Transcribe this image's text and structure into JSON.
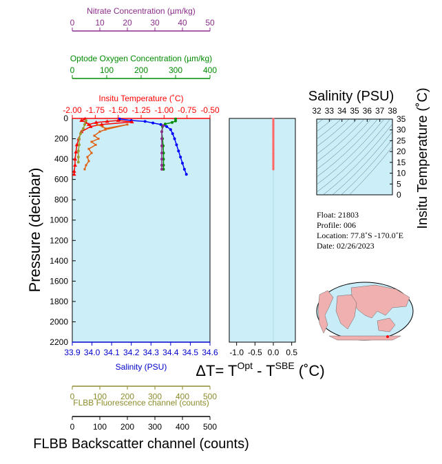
{
  "chart_data": {
    "type": "scatter",
    "y_axis": {
      "label": "Pressure (decibar)",
      "range": [
        0,
        2200
      ],
      "ticks": [
        0,
        200,
        400,
        600,
        800,
        1000,
        1200,
        1400,
        1600,
        1800,
        2000,
        2200
      ]
    },
    "top_axes": [
      {
        "label": "Nitrate Concentration (µm/kg)",
        "ticks": [
          0,
          10,
          20,
          30,
          40,
          50
        ],
        "range": [
          0,
          50
        ],
        "color": "#8b2c8b"
      },
      {
        "label": "Optode Oxygen Concentration (µm/kg)",
        "ticks": [
          0,
          100,
          200,
          300,
          400
        ],
        "range": [
          0,
          400
        ],
        "color": "#008b00"
      },
      {
        "label": "Insitu Temperature (˚C)",
        "ticks": [
          "-2.00",
          "-1.75",
          "-1.50",
          "-1.25",
          "-1.00",
          "-0.75",
          "-0.50"
        ],
        "range": [
          -2.0,
          -0.5
        ],
        "color": "#ff0000"
      }
    ],
    "bottom_axes": [
      {
        "label": "Salinity (PSU)",
        "ticks": [
          "33.9",
          "34.0",
          "34.1",
          "34.2",
          "34.3",
          "34.4",
          "34.5",
          "34.6"
        ],
        "range": [
          33.9,
          34.6
        ],
        "color": "#0000cd"
      },
      {
        "label": "FLBB Fluorescence channel (counts)",
        "ticks": [
          0,
          100,
          200,
          300,
          400,
          500
        ],
        "range": [
          0,
          500
        ],
        "color": "#8b8b2c"
      },
      {
        "label": "FLBB Backscatter channel (counts)",
        "ticks": [
          0,
          100,
          200,
          300,
          400,
          500
        ],
        "range": [
          0,
          500
        ],
        "color": "#000000"
      }
    ],
    "series": [
      {
        "name": "Salinity",
        "color": "#0000ff",
        "axis": "salinity",
        "points": [
          [
            34.14,
            5
          ],
          [
            34.2,
            20
          ],
          [
            34.27,
            30
          ],
          [
            34.31,
            45
          ],
          [
            34.35,
            60
          ],
          [
            34.38,
            80
          ],
          [
            34.4,
            110
          ],
          [
            34.41,
            150
          ],
          [
            34.42,
            200
          ],
          [
            34.43,
            260
          ],
          [
            34.44,
            320
          ],
          [
            34.45,
            380
          ],
          [
            34.46,
            440
          ],
          [
            34.47,
            500
          ],
          [
            34.48,
            550
          ]
        ]
      },
      {
        "name": "Temperature",
        "color": "#ff0000",
        "axis": "temperature",
        "points": [
          [
            -1.86,
            5
          ],
          [
            -1.9,
            20
          ],
          [
            -1.85,
            40
          ],
          [
            -1.82,
            60
          ],
          [
            -1.74,
            40
          ],
          [
            -1.62,
            30
          ],
          [
            -1.5,
            20
          ],
          [
            -1.35,
            35
          ],
          [
            -1.68,
            60
          ],
          [
            -1.8,
            80
          ],
          [
            -1.9,
            130
          ],
          [
            -1.93,
            200
          ],
          [
            -1.95,
            260
          ],
          [
            -1.96,
            330
          ],
          [
            -1.97,
            400
          ],
          [
            -1.97,
            460
          ],
          [
            -1.98,
            520
          ],
          [
            -1.98,
            550
          ]
        ]
      },
      {
        "name": "Oxygen",
        "color": "#008b00",
        "axis": "oxygen",
        "points": [
          [
            300,
            5
          ],
          [
            300,
            25
          ],
          [
            290,
            40
          ],
          [
            270,
            55
          ],
          [
            262,
            80
          ],
          [
            260,
            130
          ],
          [
            262,
            200
          ],
          [
            264,
            270
          ],
          [
            265,
            340
          ],
          [
            265,
            400
          ],
          [
            265,
            460
          ],
          [
            265,
            500
          ]
        ]
      },
      {
        "name": "Nitrate",
        "color": "#8b2c8b",
        "axis": "nitrate",
        "points": [
          [
            33,
            70
          ],
          [
            32.5,
            130
          ],
          [
            32.5,
            200
          ],
          [
            32.5,
            270
          ],
          [
            32.5,
            340
          ],
          [
            32.5,
            400
          ],
          [
            32.5,
            460
          ],
          [
            32.5,
            500
          ]
        ]
      },
      {
        "name": "Fluorescence",
        "color": "#9a9a32",
        "axis": "fluorescence",
        "points": [
          [
            50,
            20
          ],
          [
            45,
            60
          ],
          [
            40,
            100
          ],
          [
            30,
            150
          ],
          [
            25,
            200
          ],
          [
            25,
            260
          ],
          [
            22,
            320
          ],
          [
            22,
            380
          ],
          [
            22,
            430
          ]
        ]
      },
      {
        "name": "Backscatter",
        "color": "#e06010",
        "axis": "backscatter",
        "points": [
          [
            90,
            60
          ],
          [
            110,
            80
          ],
          [
            120,
            100
          ],
          [
            200,
            60
          ],
          [
            120,
            110
          ],
          [
            100,
            130
          ],
          [
            80,
            170
          ],
          [
            95,
            200
          ],
          [
            70,
            230
          ],
          [
            85,
            260
          ],
          [
            60,
            300
          ],
          [
            70,
            340
          ],
          [
            55,
            380
          ],
          [
            60,
            420
          ],
          [
            50,
            460
          ],
          [
            45,
            500
          ]
        ]
      }
    ],
    "delta_panel": {
      "xlabel_parts": [
        "ΔT= T",
        "Opt",
        " - T",
        "SBE",
        " (˚C)"
      ],
      "ticks": [
        "-1.0",
        "-0.5",
        "0.0",
        "0.5"
      ],
      "range": [
        -1.2,
        0.6
      ],
      "points": [
        [
          0,
          5
        ],
        [
          0,
          30
        ],
        [
          0,
          60
        ],
        [
          0,
          100
        ],
        [
          0,
          150
        ],
        [
          0,
          200
        ],
        [
          0,
          250
        ],
        [
          0,
          300
        ],
        [
          0,
          350
        ],
        [
          0,
          400
        ],
        [
          0,
          450
        ],
        [
          0,
          500
        ]
      ],
      "color": "#ff6666"
    },
    "ts_panel": {
      "title": "Salinity (PSU)",
      "x_ticks": [
        32,
        33,
        34,
        35,
        36,
        37,
        38
      ],
      "y_ticks": [
        0,
        5,
        10,
        15,
        20,
        25,
        30,
        35
      ],
      "ylabel": "Insitu Temperature (˚C)"
    }
  },
  "info": {
    "float": "Float:  21803",
    "profile": "Profile:  006",
    "location": "Location:  77.8˚S  -170.0˚E",
    "date": "Date:  02/26/2023"
  },
  "colors": {
    "plot_bg": "#cceef8",
    "map_land": "#f0b0b0",
    "map_ocean": "#c8ecf8"
  }
}
